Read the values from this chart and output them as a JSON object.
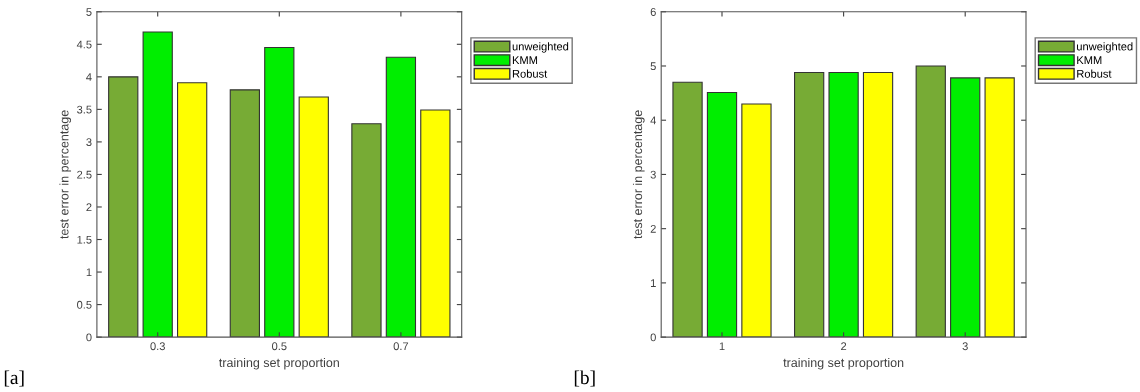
{
  "chart_data": [
    {
      "type": "bar",
      "xlabel": "training set proportion",
      "ylabel": "test error in percentage",
      "categories": [
        "0.3",
        "0.5",
        "0.7"
      ],
      "series": [
        {
          "name": "unweighted",
          "color": "#77ab35",
          "values": [
            4.0,
            3.8,
            3.28
          ]
        },
        {
          "name": "KMM",
          "color": "#00ee00",
          "values": [
            4.69,
            4.45,
            4.3
          ]
        },
        {
          "name": "Robust",
          "color": "#ffff00",
          "values": [
            3.91,
            3.69,
            3.49
          ]
        }
      ],
      "ylim": [
        0,
        5
      ],
      "yticks": [
        0,
        0.5,
        1,
        1.5,
        2,
        2.5,
        3,
        3.5,
        4,
        4.5,
        5
      ],
      "grid": false,
      "legend": "right",
      "annotations": [
        "[a]"
      ]
    },
    {
      "type": "bar",
      "xlabel": "training set proportion",
      "ylabel": "test error in percentage",
      "categories": [
        "1",
        "2",
        "3"
      ],
      "series": [
        {
          "name": "unweighted",
          "color": "#77ab35",
          "values": [
            4.7,
            4.88,
            5.0
          ]
        },
        {
          "name": "KMM",
          "color": "#00ee00",
          "values": [
            4.51,
            4.88,
            4.78
          ]
        },
        {
          "name": "Robust",
          "color": "#ffff00",
          "values": [
            4.3,
            4.88,
            4.78
          ]
        }
      ],
      "ylim": [
        0,
        6
      ],
      "yticks": [
        0,
        1,
        2,
        3,
        4,
        5,
        6
      ],
      "grid": false,
      "legend": "right",
      "annotations": [
        "[b]"
      ]
    }
  ]
}
